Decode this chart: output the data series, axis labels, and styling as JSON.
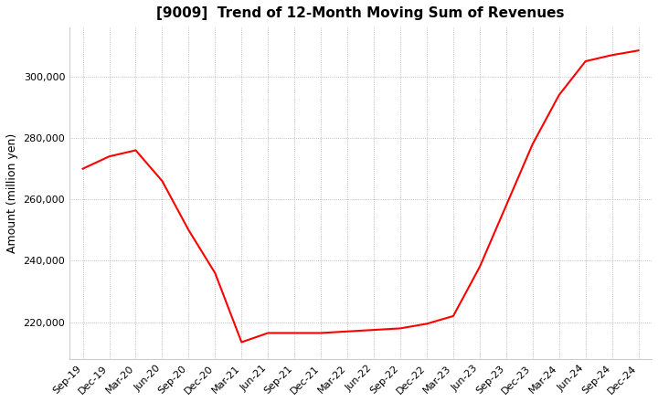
{
  "title": "[9009]  Trend of 12-Month Moving Sum of Revenues",
  "ylabel": "Amount (million yen)",
  "line_color": "#ff0000",
  "background_color": "#ffffff",
  "grid_color": "#aaaaaa",
  "ylim": [
    208000,
    316000
  ],
  "yticks": [
    220000,
    240000,
    260000,
    280000,
    300000
  ],
  "values": [
    270000,
    274000,
    276000,
    266000,
    250000,
    236000,
    213500,
    216500,
    216500,
    216500,
    217000,
    217500,
    218000,
    219500,
    222000,
    238000,
    258000,
    278000,
    294000,
    305000,
    307000,
    308500
  ],
  "xtick_labels": [
    "Sep-19",
    "Dec-19",
    "Mar-20",
    "Jun-20",
    "Sep-20",
    "Dec-20",
    "Mar-21",
    "Jun-21",
    "Sep-21",
    "Dec-21",
    "Mar-22",
    "Jun-22",
    "Sep-22",
    "Dec-22",
    "Mar-23",
    "Jun-23",
    "Sep-23",
    "Dec-23",
    "Mar-24",
    "Jun-24",
    "Sep-24",
    "Dec-24"
  ],
  "title_fontsize": 11,
  "ylabel_fontsize": 9,
  "tick_fontsize": 8,
  "line_width": 1.5
}
